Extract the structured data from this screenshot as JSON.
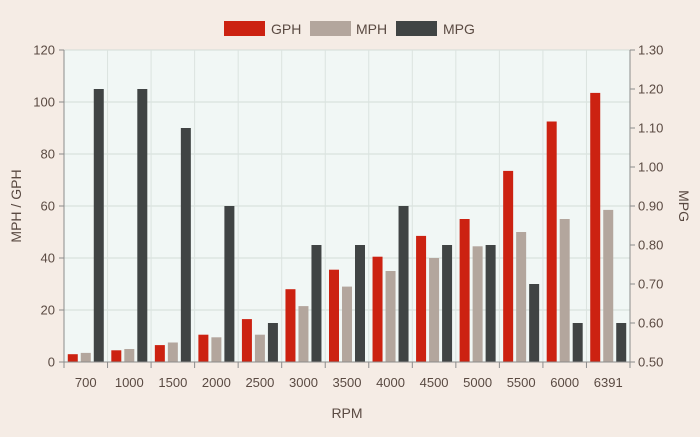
{
  "chart_data": {
    "type": "bar",
    "categories": [
      "700",
      "1000",
      "1500",
      "2000",
      "2500",
      "3000",
      "3500",
      "4000",
      "4500",
      "5000",
      "5500",
      "6000",
      "6391"
    ],
    "series": [
      {
        "name": "GPH",
        "axis": "left",
        "color": "#cc2211",
        "values": [
          3,
          4.5,
          6.5,
          10.5,
          16.5,
          28,
          35.5,
          40.5,
          48.5,
          55,
          73.5,
          92.5,
          103.5
        ]
      },
      {
        "name": "MPH",
        "axis": "left",
        "color": "#b3a69d",
        "values": [
          3.5,
          5,
          7.5,
          9.5,
          10.5,
          21.5,
          29,
          35,
          40,
          44.5,
          50,
          55,
          58.5
        ]
      },
      {
        "name": "MPG",
        "axis": "right",
        "color": "#404444",
        "values": [
          1.2,
          1.2,
          1.1,
          0.9,
          0.6,
          0.8,
          0.8,
          0.9,
          0.8,
          0.8,
          0.7,
          0.6,
          0.6
        ]
      }
    ],
    "xlabel": "RPM",
    "ylabel": "MPH / GPH",
    "y2label": "MPG",
    "ylim": [
      0,
      120
    ],
    "y2lim": [
      0.5,
      1.3
    ],
    "yticks": [
      "0",
      "20",
      "40",
      "60",
      "80",
      "100",
      "120"
    ],
    "y2ticks": [
      "0.50",
      "0.60",
      "0.70",
      "0.80",
      "0.90",
      "1.00",
      "1.10",
      "1.20",
      "1.30"
    ],
    "grid": true,
    "legend": "top-center",
    "plot_background": "#f1f7f5",
    "background": "#f5ece5"
  }
}
